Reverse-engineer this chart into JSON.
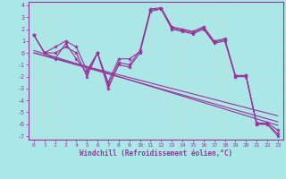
{
  "xlabel": "Windchill (Refroidissement éolien,°C)",
  "xlim": [
    -0.5,
    23.5
  ],
  "ylim": [
    -7.3,
    4.3
  ],
  "xticks": [
    0,
    1,
    2,
    3,
    4,
    5,
    6,
    7,
    8,
    9,
    10,
    11,
    12,
    13,
    14,
    15,
    16,
    17,
    18,
    19,
    20,
    21,
    22,
    23
  ],
  "yticks": [
    -7,
    -6,
    -5,
    -4,
    -3,
    -2,
    -1,
    0,
    1,
    2,
    3,
    4
  ],
  "bg_color": "#aae8e8",
  "grid_color": "#c0e8e8",
  "line_color": "#993399",
  "curve1_x": [
    0,
    1,
    2,
    3,
    4,
    5,
    6,
    7,
    8,
    9,
    10,
    11,
    12,
    13,
    14,
    15,
    16,
    17,
    18,
    19,
    20,
    21,
    22,
    23
  ],
  "curve1_y": [
    1.5,
    0.0,
    0.5,
    1.0,
    0.5,
    -1.5,
    0.0,
    -2.7,
    -0.8,
    -1.0,
    0.2,
    3.7,
    3.8,
    2.2,
    2.0,
    1.8,
    2.2,
    1.0,
    1.2,
    -1.9,
    -1.9,
    -6.0,
    -6.0,
    -6.8
  ],
  "curve2_x": [
    0,
    1,
    2,
    3,
    4,
    5,
    6,
    7,
    8,
    9,
    10,
    11,
    12,
    13,
    14,
    15,
    16,
    17,
    18,
    19,
    20,
    21,
    22,
    23
  ],
  "curve2_y": [
    1.5,
    0.0,
    -0.5,
    0.8,
    -0.5,
    -1.7,
    0.0,
    -3.0,
    -1.0,
    -1.2,
    0.0,
    3.5,
    3.7,
    2.0,
    1.8,
    1.6,
    2.0,
    0.8,
    1.0,
    -2.0,
    -2.0,
    -6.0,
    -6.0,
    -7.0
  ],
  "curve3_x": [
    0,
    1,
    2,
    3,
    4,
    5,
    6,
    7,
    8,
    9,
    10,
    11,
    12,
    13,
    14,
    15,
    16,
    17,
    18,
    19,
    20,
    21,
    22,
    23
  ],
  "curve3_y": [
    1.5,
    0.0,
    0.0,
    0.5,
    0.0,
    -2.0,
    0.0,
    -2.5,
    -0.5,
    -0.5,
    0.1,
    3.6,
    3.7,
    2.1,
    1.9,
    1.7,
    2.1,
    0.9,
    1.1,
    -2.0,
    -1.9,
    -5.9,
    -5.9,
    -6.5
  ],
  "trend1_x": [
    0,
    23
  ],
  "trend1_y": [
    0.0,
    -5.8
  ],
  "trend2_x": [
    0,
    23
  ],
  "trend2_y": [
    0.0,
    -5.3
  ],
  "trend3_x": [
    0,
    23
  ],
  "trend3_y": [
    0.2,
    -6.1
  ]
}
